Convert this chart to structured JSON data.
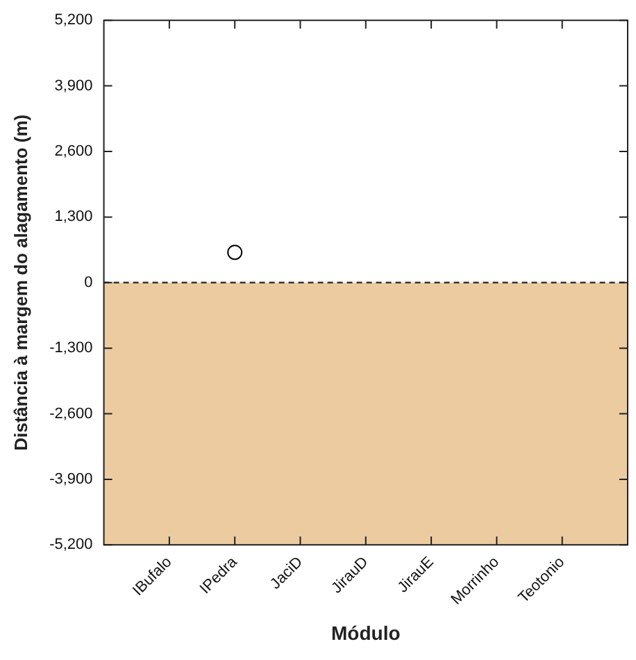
{
  "chart_data": {
    "type": "scatter",
    "xlabel": "Módulo",
    "ylabel": "Distância à margem do alagamento (m)",
    "categories": [
      "IBufalo",
      "IPedra",
      "JaciD",
      "JirauD",
      "JirauE",
      "Morrinho",
      "Teotonio"
    ],
    "series": [
      {
        "x": [
          "IPedra"
        ],
        "values": [
          600
        ],
        "color": "#000000"
      }
    ],
    "marker": "circle",
    "grid": false,
    "legend": false,
    "ylim": [
      -5200,
      5200
    ],
    "yticks": [
      {
        "value": -5200,
        "label": "-5,200"
      },
      {
        "value": -3900,
        "label": "-3,900"
      },
      {
        "value": -2600,
        "label": "-2,600"
      },
      {
        "value": -1300,
        "label": "-1,300"
      },
      0,
      {
        "value": 1300,
        "label": "1,300"
      },
      {
        "value": 2600,
        "label": "2,600"
      },
      {
        "value": 3900,
        "label": "3,900"
      },
      {
        "value": 5200,
        "label": "5,200"
      }
    ],
    "bands": [
      {
        "axis": "y",
        "from": -5200,
        "to": 0,
        "color": "#eccba0"
      }
    ],
    "ref_lines": [
      {
        "axis": "y",
        "value": 0,
        "line_style": "dashed",
        "color": "#333333"
      }
    ]
  }
}
